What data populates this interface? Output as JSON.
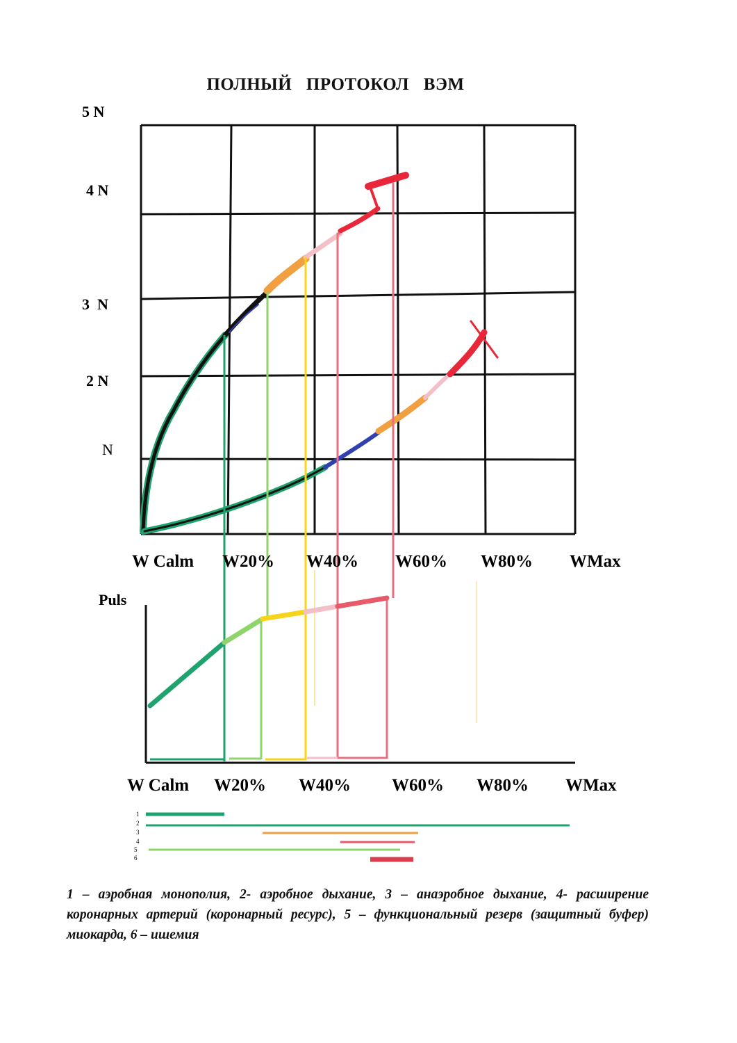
{
  "title": "ПОЛНЫЙ   ПРОТОКОЛ   ВЭМ",
  "top_chart": {
    "y_labels": [
      "5 N",
      "4 N",
      "3  N",
      "2 N",
      "N"
    ],
    "x_labels": [
      "W Calm",
      "W20%",
      "W40%",
      "W60%",
      "W80%",
      "WMax"
    ]
  },
  "bottom_chart": {
    "y_label": "Puls",
    "x_labels": [
      "W Calm",
      "W20%",
      "W40%",
      "W60%",
      "W80%",
      "WMax"
    ]
  },
  "legend_numbers": [
    "1",
    "2",
    "3",
    "4",
    "5",
    "6"
  ],
  "caption": "1 – аэробная монополия, 2- аэробное дыхание, 3 – анаэробное дыхание, 4- расширение коронарных артерий (коронарный ресурс), 5 – функциональный резерв (защитный буфер) миокарда, 6 – ишемия",
  "colors": {
    "green": "#1fa36e",
    "light_green": "#8fd46a",
    "yellow": "#f5d41a",
    "orange": "#f0a040",
    "pink": "#f0a8b0",
    "red": "#e8283a",
    "grid": "#111111"
  }
}
